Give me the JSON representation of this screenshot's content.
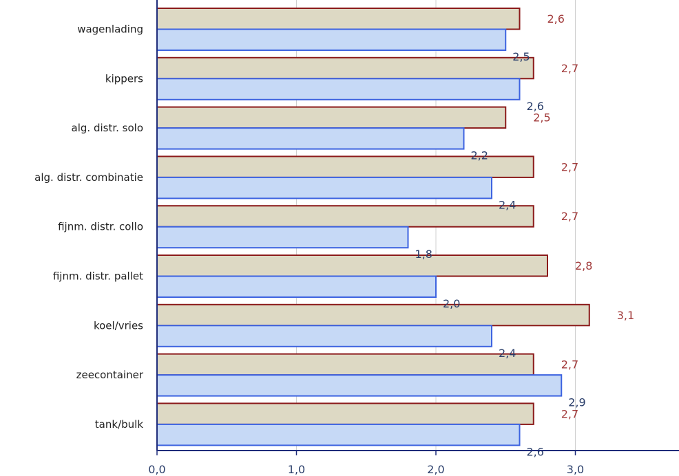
{
  "chart_data": {
    "type": "bar",
    "orientation": "horizontal",
    "categories": [
      "wagenlading",
      "kippers",
      "alg. distr. solo",
      "alg. distr. combinatie",
      "fijnm. distr. collo",
      "fijnm. distr. pallet",
      "koel/vries",
      "zeecontainer",
      "tank/bulk"
    ],
    "series": [
      {
        "values": [
          2.6,
          2.7,
          2.5,
          2.7,
          2.7,
          2.8,
          3.1,
          2.7,
          2.7
        ],
        "labels": [
          "2,6",
          "2,7",
          "2,5",
          "2,7",
          "2,7",
          "2,8",
          "3,1",
          "2,7",
          "2,7"
        ],
        "fill": "#ddd9c4",
        "stroke": "#8b1a1a",
        "label_color": "#a23b3b"
      },
      {
        "values": [
          2.5,
          2.6,
          2.2,
          2.4,
          1.8,
          2.0,
          2.4,
          2.9,
          2.6
        ],
        "labels": [
          "2,5",
          "2,6",
          "2,2",
          "2,4",
          "1,8",
          "2,0",
          "2,4",
          "2,9",
          "2,6"
        ],
        "fill": "#c6d9f6",
        "stroke": "#3d63e0",
        "label_color": "#2b3f6b"
      }
    ],
    "xlim": [
      0,
      3.75
    ],
    "xticks": [
      0,
      1,
      2,
      3
    ],
    "xtick_labels": [
      "0,0",
      "1,0",
      "2,0",
      "3,0"
    ],
    "grid": true,
    "axis_color": "#1f2c7a",
    "grid_color": "#d0d0d0"
  }
}
